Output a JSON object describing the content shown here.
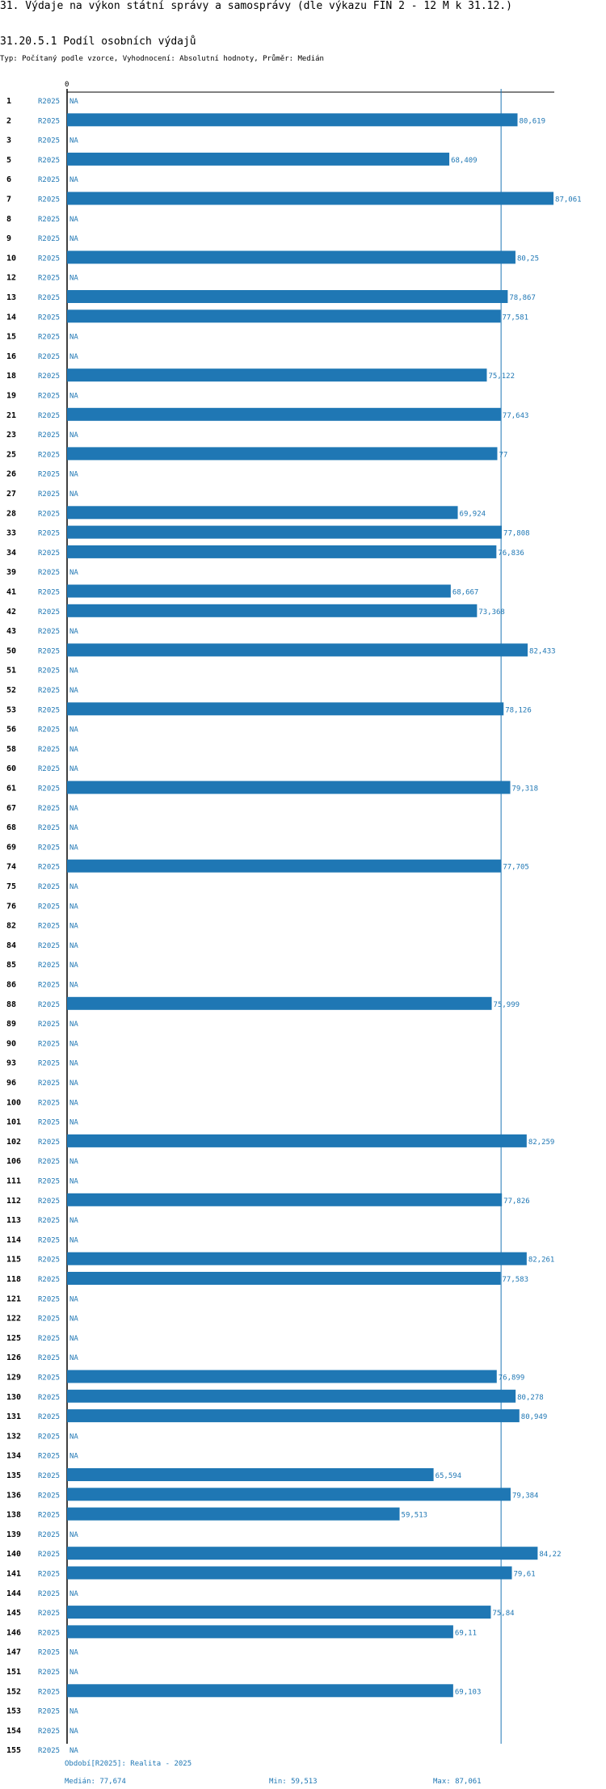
{
  "title": "31. Výdaje na výkon státní správy a samosprávy (dle výkazu FIN 2 - 12 M k 31.12.)",
  "subtitle": "31.20.5.1 Podíl osobních výdajů",
  "description": "Typ: Počítaný podle vzorce, Vyhodnocení: Absolutní hodnoty, Průměr: Medián",
  "axis_tick_zero": "0",
  "footer": {
    "period": "Období[R2025]: Realita - 2025",
    "median": "Medián: 77,674",
    "min": "Min: 59,513",
    "max": "Max: 87,061"
  },
  "colors": {
    "bar": "#1f77b4",
    "text": "#000000"
  },
  "chart_data": {
    "type": "bar",
    "orientation": "horizontal",
    "period_label": "R2025",
    "median": 77.674,
    "min": 59.513,
    "max": 87.061,
    "xlim": [
      0,
      88.5
    ],
    "categories": [
      "1",
      "2",
      "3",
      "5",
      "6",
      "7",
      "8",
      "9",
      "10",
      "12",
      "13",
      "14",
      "15",
      "16",
      "18",
      "19",
      "21",
      "23",
      "25",
      "26",
      "27",
      "28",
      "33",
      "34",
      "39",
      "41",
      "42",
      "43",
      "50",
      "51",
      "52",
      "53",
      "56",
      "58",
      "60",
      "61",
      "67",
      "68",
      "69",
      "74",
      "75",
      "76",
      "82",
      "84",
      "85",
      "86",
      "88",
      "89",
      "90",
      "93",
      "96",
      "100",
      "101",
      "102",
      "106",
      "111",
      "112",
      "113",
      "114",
      "115",
      "118",
      "121",
      "122",
      "125",
      "126",
      "129",
      "130",
      "131",
      "132",
      "134",
      "135",
      "136",
      "138",
      "139",
      "140",
      "141",
      "144",
      "145",
      "146",
      "147",
      "151",
      "152",
      "153",
      "154",
      "155"
    ],
    "values": [
      null,
      80.619,
      null,
      68.409,
      null,
      87.061,
      null,
      null,
      80.25,
      null,
      78.867,
      77.581,
      null,
      null,
      75.122,
      null,
      77.643,
      null,
      77,
      null,
      null,
      69.924,
      77.808,
      76.836,
      null,
      68.667,
      73.368,
      null,
      82.433,
      null,
      null,
      78.126,
      null,
      null,
      null,
      79.318,
      null,
      null,
      null,
      77.705,
      null,
      null,
      null,
      null,
      null,
      null,
      75.999,
      null,
      null,
      null,
      null,
      null,
      null,
      82.259,
      null,
      null,
      77.826,
      null,
      null,
      82.261,
      77.583,
      null,
      null,
      null,
      null,
      76.899,
      80.278,
      80.949,
      null,
      null,
      65.594,
      79.384,
      59.513,
      null,
      84.22,
      79.61,
      null,
      75.84,
      69.11,
      null,
      null,
      69.103,
      null,
      null,
      null
    ],
    "value_labels": [
      "NA",
      "80,619",
      "NA",
      "68,409",
      "NA",
      "87,061",
      "NA",
      "NA",
      "80,25",
      "NA",
      "78,867",
      "77,581",
      "NA",
      "NA",
      "75,122",
      "NA",
      "77,643",
      "NA",
      "77",
      "NA",
      "NA",
      "69,924",
      "77,808",
      "76,836",
      "NA",
      "68,667",
      "73,368",
      "NA",
      "82,433",
      "NA",
      "NA",
      "78,126",
      "NA",
      "NA",
      "NA",
      "79,318",
      "NA",
      "NA",
      "NA",
      "77,705",
      "NA",
      "NA",
      "NA",
      "NA",
      "NA",
      "NA",
      "75,999",
      "NA",
      "NA",
      "NA",
      "NA",
      "NA",
      "NA",
      "82,259",
      "NA",
      "NA",
      "77,826",
      "NA",
      "NA",
      "82,261",
      "77,583",
      "NA",
      "NA",
      "NA",
      "NA",
      "76,899",
      "80,278",
      "80,949",
      "NA",
      "NA",
      "65,594",
      "79,384",
      "59,513",
      "NA",
      "84,22",
      "79,61",
      "NA",
      "75,84",
      "69,11",
      "NA",
      "NA",
      "69,103",
      "NA",
      "NA",
      "NA"
    ]
  }
}
